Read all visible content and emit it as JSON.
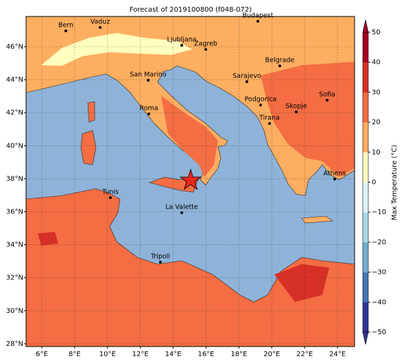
{
  "title": "Forecast of 2019100800 (f048-072)",
  "map": {
    "xlim": [
      5.04,
      25.04
    ],
    "ylim": [
      27.83,
      47.83
    ],
    "grid": true,
    "xticks": [
      {
        "value": 6,
        "label": "6°E"
      },
      {
        "value": 8,
        "label": "8°E"
      },
      {
        "value": 10,
        "label": "10°E"
      },
      {
        "value": 12,
        "label": "12°E"
      },
      {
        "value": 14,
        "label": "14°E"
      },
      {
        "value": 16,
        "label": "16°E"
      },
      {
        "value": 18,
        "label": "18°E"
      },
      {
        "value": 20,
        "label": "20°E"
      },
      {
        "value": 22,
        "label": "22°E"
      },
      {
        "value": 24,
        "label": "24°E"
      }
    ],
    "yticks": [
      {
        "value": 28,
        "label": "28°N"
      },
      {
        "value": 30,
        "label": "30°N"
      },
      {
        "value": 32,
        "label": "32°N"
      },
      {
        "value": 34,
        "label": "34°N"
      },
      {
        "value": 36,
        "label": "36°N"
      },
      {
        "value": 38,
        "label": "38°N"
      },
      {
        "value": 40,
        "label": "40°N"
      },
      {
        "value": 42,
        "label": "42°N"
      },
      {
        "value": 44,
        "label": "44°N"
      },
      {
        "value": 46,
        "label": "46°N"
      }
    ]
  },
  "cities": [
    "Bern",
    "Vaduz",
    "Budapest",
    "Ljubljana",
    "Zagreb",
    "Belgrade",
    "San Marino",
    "Sarajevo",
    "Sofia",
    "Podgorica",
    "Skopje",
    "Roma",
    "Tirana",
    "Athens",
    "Tunis",
    "La Valette",
    "Tripoli"
  ],
  "colorbar": {
    "label": "Max Temperature (°C)",
    "lim": [
      -50,
      50
    ],
    "ticks": [
      {
        "value": -50,
        "label": "−50"
      },
      {
        "value": -40,
        "label": "−40"
      },
      {
        "value": -30,
        "label": "−30"
      },
      {
        "value": -20,
        "label": "−20"
      },
      {
        "value": -10,
        "label": "−10"
      },
      0,
      10,
      20,
      30,
      40,
      50
    ],
    "colors": [
      "#313695",
      "#4575b4",
      "#74add1",
      "#abd9e9",
      "#e0f3f8",
      "#ffffbf",
      "#fdae61",
      "#f46d43",
      "#d73027",
      "#a50026"
    ]
  }
}
